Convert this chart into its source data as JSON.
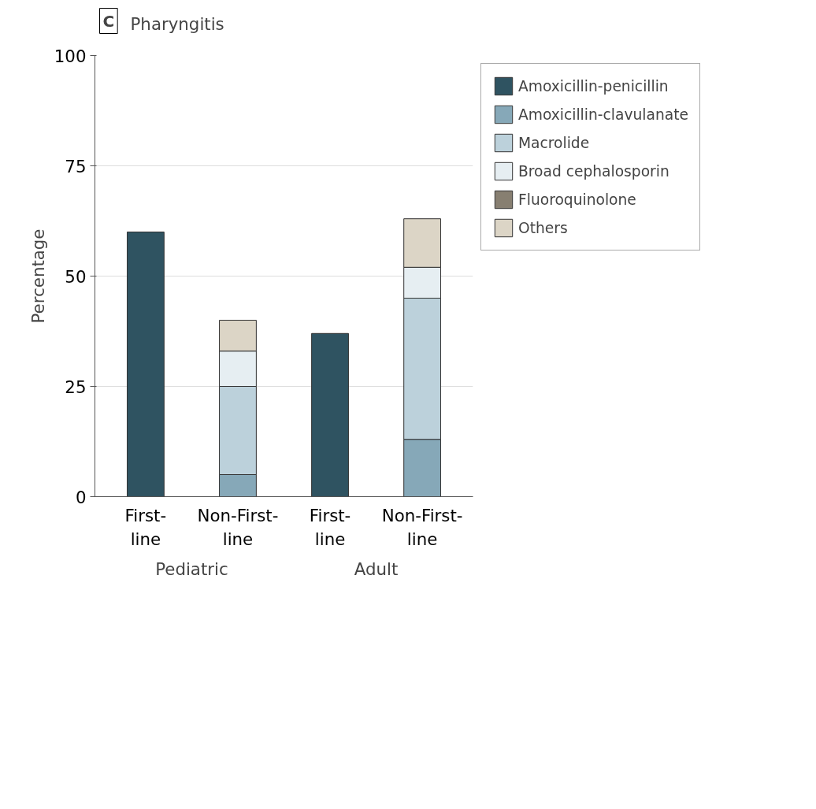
{
  "chart_data": {
    "type": "bar",
    "title": "Pharyngitis",
    "ylabel": "Percentage",
    "stacked": true,
    "categories": [
      "First-line",
      "Non-First-line",
      "First-line",
      "Non-First-line"
    ],
    "series": [
      {
        "name": "Amoxicillin-penicillin",
        "color": "#2f5361",
        "values": [
          60,
          null,
          37,
          null
        ]
      },
      {
        "name": "Amoxicillin-clavulanate",
        "color": "#86a8b8",
        "values": [
          null,
          5,
          null,
          13
        ]
      },
      {
        "name": "Macrolide",
        "color": "#bcd1db",
        "values": [
          null,
          20,
          null,
          32
        ]
      },
      {
        "name": "Broad cephalosporin",
        "color": "#e6eef2",
        "values": [
          null,
          8,
          null,
          7
        ]
      },
      {
        "name": "Fluoroquinolone",
        "color": "#877f71",
        "values": [
          null,
          null,
          null,
          null
        ]
      },
      {
        "name": "Others",
        "color": "#dcd5c6",
        "values": [
          null,
          7,
          null,
          11
        ]
      }
    ],
    "ylim": [
      0,
      100
    ],
    "yticks": [
      0,
      25,
      50,
      75,
      100
    ],
    "grid": "y",
    "legend": "right",
    "annotations": [
      "C",
      "Pediatric",
      "Adult"
    ]
  }
}
